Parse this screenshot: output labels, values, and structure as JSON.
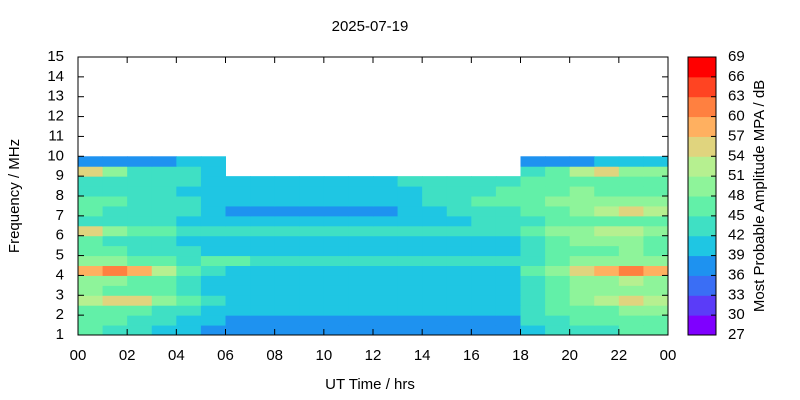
{
  "chart_data": {
    "type": "heatmap",
    "title": "2025-07-19",
    "x_label": "UT Time / hrs",
    "y_label": "Frequency / MHz",
    "colorbar_label": "Most Probable Amplitude MPA / dB",
    "xlim": [
      0,
      24
    ],
    "ylim": [
      1,
      15
    ],
    "xticks": [
      {
        "value": 0,
        "label": "00"
      },
      {
        "value": 2,
        "label": "02"
      },
      {
        "value": 4,
        "label": "04"
      },
      {
        "value": 6,
        "label": "06"
      },
      {
        "value": 8,
        "label": "08"
      },
      10,
      12,
      14,
      16,
      18,
      20,
      22,
      {
        "value": 24,
        "label": "00"
      }
    ],
    "yticks": [
      1,
      2,
      3,
      4,
      5,
      6,
      7,
      8,
      9,
      10,
      11,
      12,
      13,
      14,
      15
    ],
    "xbins": [
      0,
      1,
      2,
      3,
      4,
      5,
      6,
      7,
      8,
      9,
      10,
      11,
      12,
      13,
      14,
      15,
      16,
      17,
      18,
      19,
      20,
      21,
      22,
      23,
      24
    ],
    "ybins": [
      1,
      1.5,
      2,
      2.5,
      3,
      3.5,
      4,
      4.5,
      5,
      5.5,
      6,
      6.5,
      7,
      7.5,
      8,
      8.5,
      9,
      9.5,
      10
    ],
    "z": [
      [
        45,
        43,
        42,
        40,
        39,
        38,
        37,
        37,
        37,
        37,
        37,
        37,
        37,
        37,
        37,
        37,
        37,
        37,
        40,
        42,
        44,
        44,
        45,
        45
      ],
      [
        46,
        45,
        44,
        42,
        40,
        39,
        38,
        38,
        38,
        38,
        38,
        38,
        38,
        38,
        38,
        38,
        38,
        38,
        42,
        44,
        46,
        46,
        47,
        47
      ],
      [
        47,
        46,
        45,
        44,
        42,
        40,
        39,
        39,
        39,
        39,
        39,
        39,
        39,
        39,
        39,
        39,
        39,
        39,
        43,
        45,
        47,
        47,
        48,
        48
      ],
      [
        52,
        54,
        55,
        49,
        45,
        42,
        40,
        40,
        40,
        40,
        40,
        40,
        40,
        40,
        40,
        40,
        40,
        40,
        44,
        46,
        50,
        52,
        55,
        53
      ],
      [
        48,
        47,
        46,
        45,
        44,
        41,
        40,
        40,
        40,
        40,
        40,
        40,
        40,
        40,
        40,
        40,
        40,
        40,
        44,
        46,
        48,
        48,
        49,
        48
      ],
      [
        49,
        48,
        47,
        46,
        44,
        41,
        40,
        40,
        40,
        40,
        40,
        40,
        40,
        40,
        40,
        40,
        40,
        40,
        44,
        46,
        49,
        50,
        51,
        50
      ],
      [
        58,
        60,
        57,
        52,
        46,
        42,
        40,
        40,
        40,
        40,
        40,
        40,
        40,
        40,
        40,
        40,
        40,
        40,
        45,
        48,
        56,
        58,
        60,
        58
      ],
      [
        49,
        48,
        47,
        46,
        44,
        46,
        45,
        44,
        44,
        44,
        44,
        44,
        44,
        44,
        44,
        44,
        44,
        44,
        44,
        46,
        48,
        49,
        50,
        49
      ],
      [
        46,
        45,
        44,
        43,
        42,
        40,
        39,
        39,
        39,
        39,
        39,
        39,
        39,
        39,
        39,
        39,
        39,
        39,
        43,
        45,
        47,
        47,
        48,
        47
      ],
      [
        45,
        44,
        43,
        42,
        41,
        40,
        40,
        40,
        40,
        40,
        40,
        40,
        40,
        40,
        40,
        40,
        40,
        40,
        44,
        46,
        48,
        48,
        48,
        47
      ],
      [
        54,
        48,
        46,
        45,
        43,
        44,
        42,
        42,
        42,
        42,
        42,
        42,
        42,
        42,
        42,
        42,
        42,
        43,
        45,
        48,
        50,
        51,
        52,
        50
      ],
      [
        44,
        43,
        43,
        42,
        41,
        40,
        40,
        40,
        40,
        40,
        40,
        40,
        40,
        40,
        40,
        41,
        42,
        43,
        44,
        46,
        47,
        47,
        47,
        46
      ],
      [
        45,
        44,
        44,
        43,
        42,
        41,
        38,
        38,
        38,
        38,
        38,
        38,
        38,
        39,
        40,
        42,
        43,
        44,
        46,
        47,
        50,
        52,
        54,
        52
      ],
      [
        46,
        45,
        44,
        43,
        42,
        41,
        40,
        40,
        40,
        40,
        40,
        40,
        40,
        41,
        42,
        44,
        45,
        46,
        47,
        48,
        49,
        49,
        50,
        49
      ],
      [
        43,
        42,
        42,
        42,
        41,
        41,
        40,
        40,
        40,
        40,
        40,
        40,
        40,
        41,
        42,
        43,
        44,
        45,
        46,
        47,
        48,
        47,
        47,
        46
      ],
      [
        44,
        43,
        43,
        42,
        42,
        41,
        40,
        41,
        41,
        41,
        41,
        41,
        41,
        42,
        42,
        43,
        43,
        44,
        45,
        46,
        47,
        47,
        46,
        46
      ],
      [
        56,
        48,
        44,
        42,
        42,
        40,
        null,
        null,
        null,
        null,
        null,
        null,
        null,
        null,
        null,
        null,
        null,
        null,
        44,
        46,
        52,
        54,
        50,
        48
      ],
      [
        38,
        38,
        38,
        38,
        40,
        39,
        null,
        null,
        null,
        null,
        null,
        null,
        null,
        null,
        null,
        null,
        null,
        null,
        38,
        38,
        38,
        39,
        39,
        40
      ]
    ],
    "colorbar_bounds": [
      27,
      30,
      33,
      36,
      39,
      42,
      45,
      48,
      51,
      54,
      57,
      60,
      63,
      66,
      69
    ],
    "colorbar_colors": [
      "#7f00ff",
      "#5b3cf8",
      "#3a6ef5",
      "#1e92f0",
      "#1fc6e3",
      "#3fe0c4",
      "#62f0a8",
      "#8ef49a",
      "#b6f090",
      "#e0d47e",
      "#ffb060",
      "#ff8040",
      "#ff4422",
      "#ff0000"
    ]
  }
}
